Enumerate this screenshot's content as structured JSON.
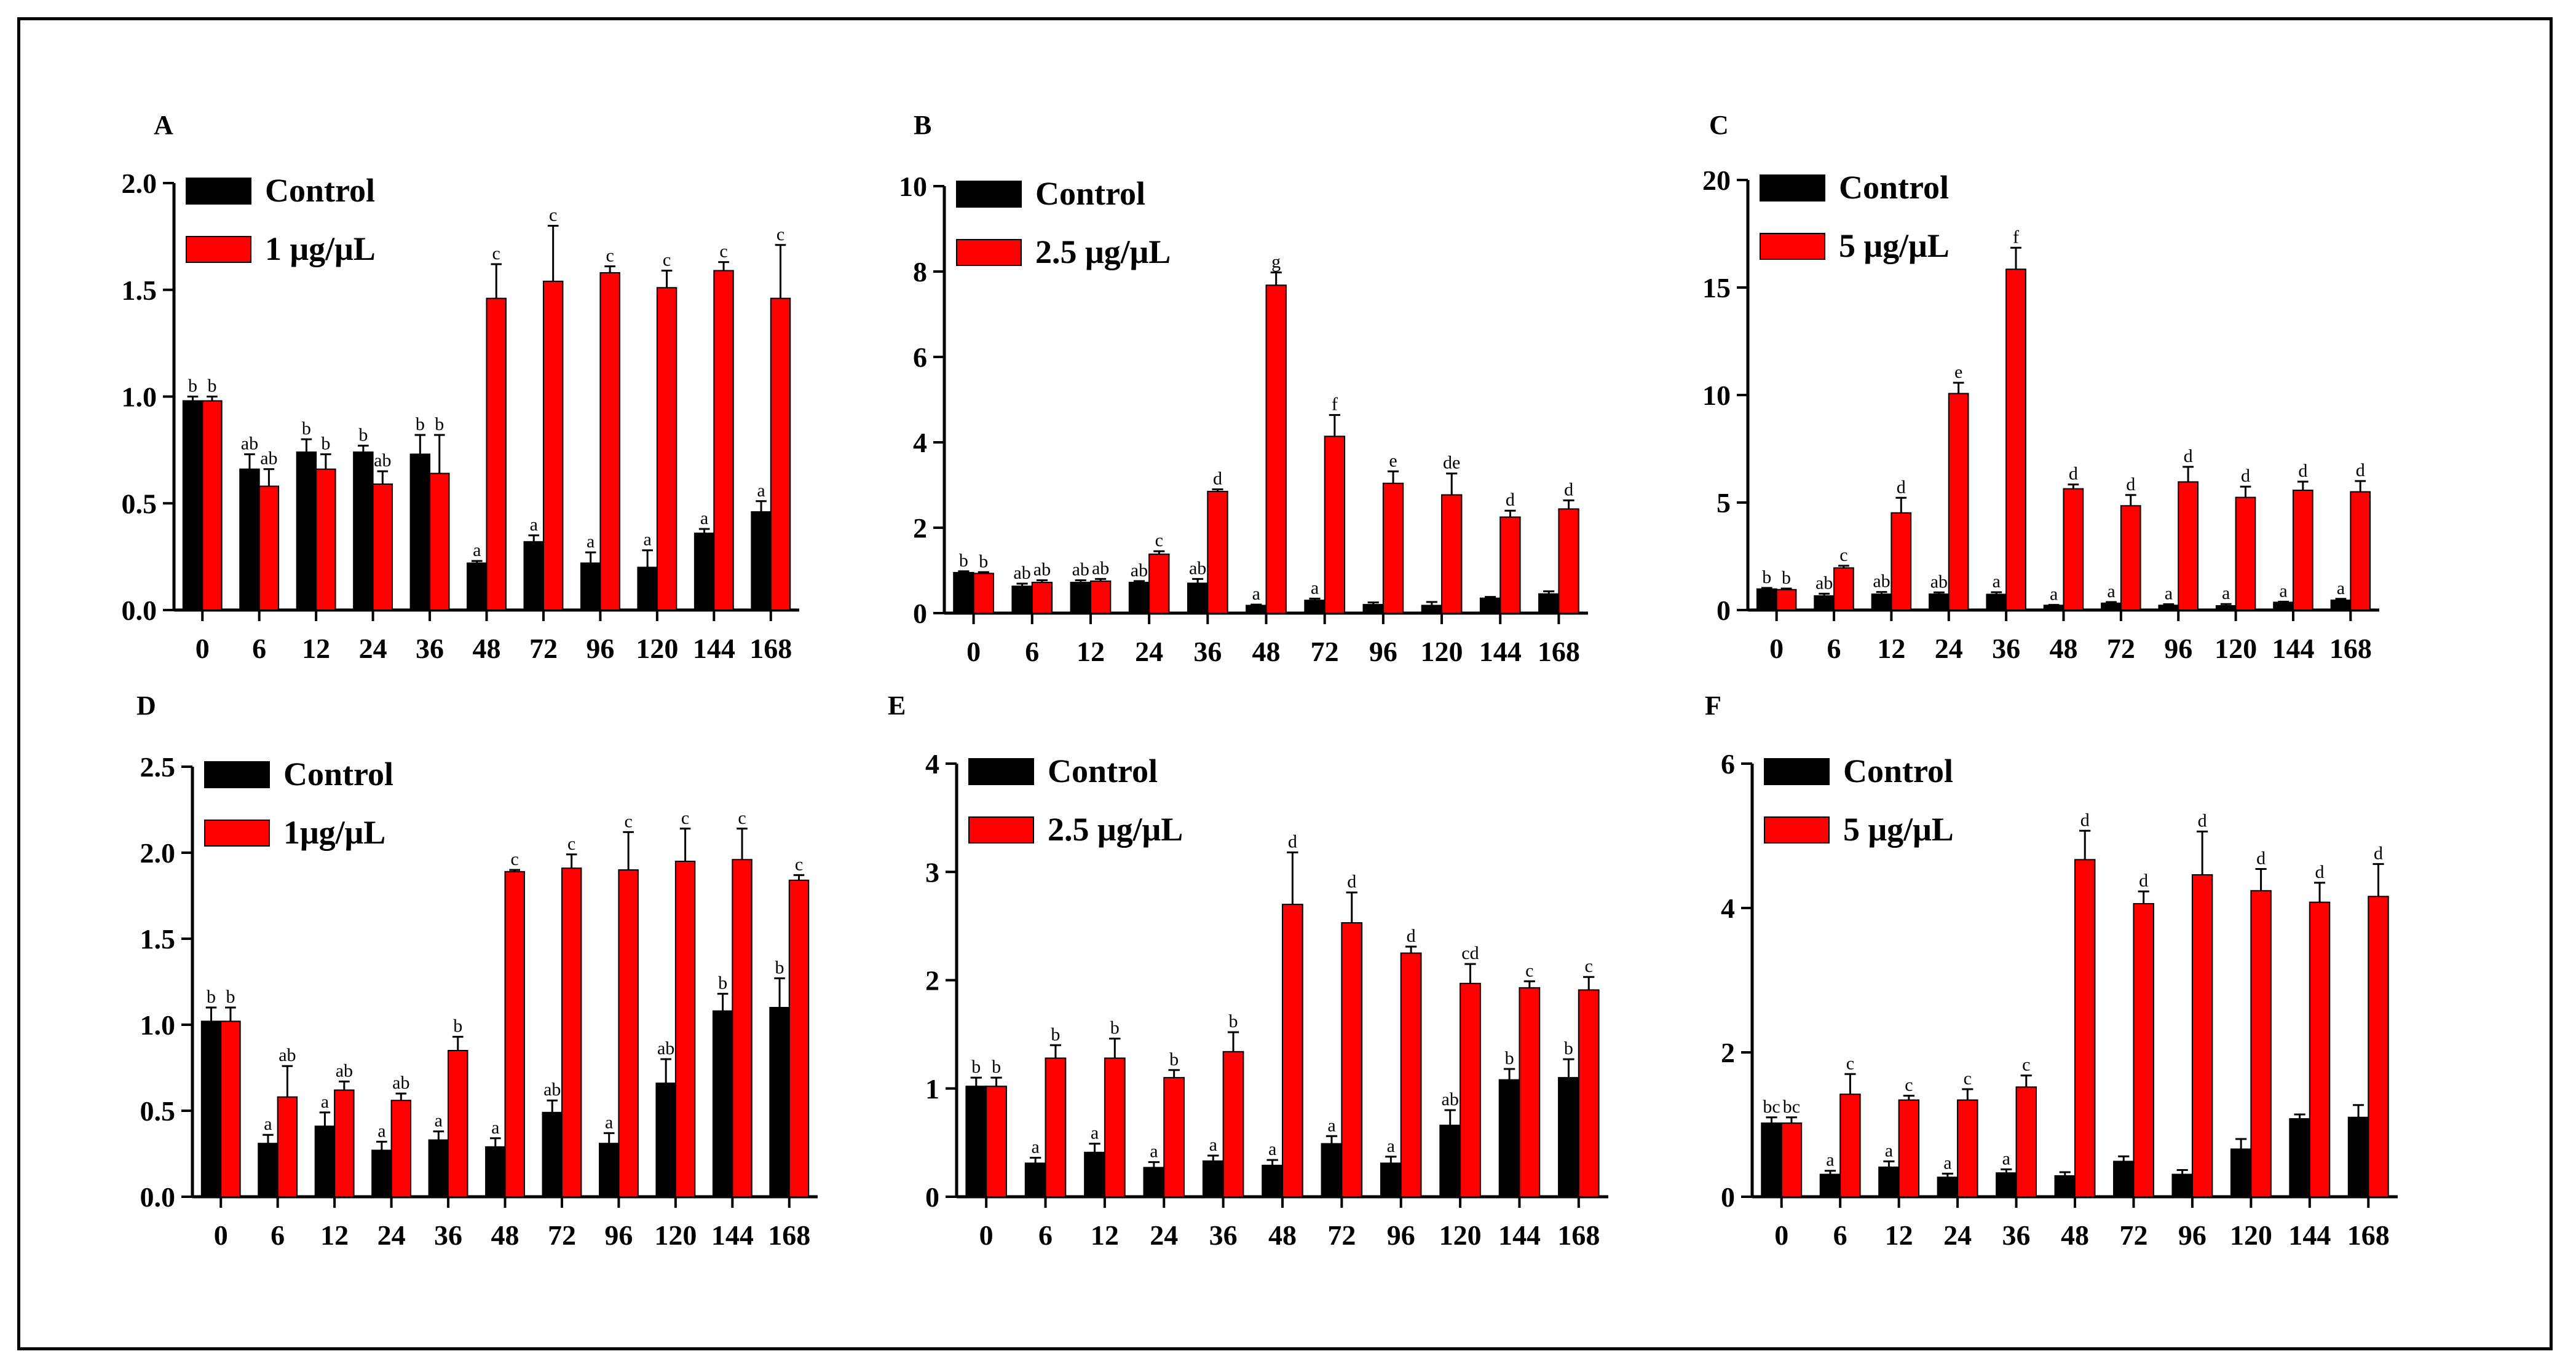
{
  "colors": {
    "control": "#000000",
    "treatment": "#ff0000",
    "frame": "#000000"
  },
  "chart_data": [
    {
      "type": "bar",
      "panel": "A",
      "categories": [
        "0",
        "6",
        "12",
        "24",
        "36",
        "48",
        "72",
        "96",
        "120",
        "144",
        "168"
      ],
      "ylim": [
        0,
        2.0
      ],
      "yticks": [
        "0.0",
        "0.5",
        "1.0",
        "1.5",
        "2.0"
      ],
      "ytick_values": [
        0,
        0.5,
        1.0,
        1.5,
        2.0
      ],
      "legend": [
        "Control",
        "1 μg/μL"
      ],
      "series": [
        {
          "name": "Control",
          "values": [
            0.98,
            0.66,
            0.74,
            0.74,
            0.73,
            0.22,
            0.32,
            0.22,
            0.2,
            0.36,
            0.46
          ],
          "errors": [
            0.02,
            0.07,
            0.06,
            0.03,
            0.09,
            0.01,
            0.03,
            0.05,
            0.08,
            0.02,
            0.05
          ],
          "letters": [
            "b",
            "ab",
            "b",
            "b",
            "b",
            "a",
            "a",
            "a",
            "a",
            "a",
            "a"
          ]
        },
        {
          "name": "1 μg/μL",
          "values": [
            0.98,
            0.58,
            0.66,
            0.59,
            0.64,
            1.46,
            1.54,
            1.58,
            1.51,
            1.59,
            1.46
          ],
          "errors": [
            0.02,
            0.08,
            0.07,
            0.06,
            0.18,
            0.16,
            0.26,
            0.03,
            0.08,
            0.04,
            0.25
          ],
          "letters": [
            "b",
            "ab",
            "b",
            "ab",
            "b",
            "c",
            "c",
            "c",
            "c",
            "c",
            "c"
          ]
        }
      ]
    },
    {
      "type": "bar",
      "panel": "B",
      "categories": [
        "0",
        "6",
        "12",
        "24",
        "36",
        "48",
        "72",
        "96",
        "120",
        "144",
        "168"
      ],
      "ylim": [
        0,
        10
      ],
      "yticks": [
        "0",
        "2",
        "4",
        "6",
        "8",
        "10"
      ],
      "ytick_values": [
        0,
        2,
        4,
        6,
        8,
        10
      ],
      "legend": [
        "Control",
        "2.5 μg/μL"
      ],
      "series": [
        {
          "name": "Control",
          "values": [
            0.95,
            0.63,
            0.72,
            0.72,
            0.7,
            0.18,
            0.3,
            0.2,
            0.18,
            0.35,
            0.45
          ],
          "errors": [
            0.03,
            0.06,
            0.05,
            0.03,
            0.1,
            0.02,
            0.04,
            0.05,
            0.08,
            0.03,
            0.06
          ],
          "letters": [
            "b",
            "ab",
            "ab",
            "ab",
            "ab",
            "a",
            "a",
            "",
            "",
            "",
            ""
          ]
        },
        {
          "name": "2.5 μg/μL",
          "values": [
            0.93,
            0.72,
            0.75,
            1.38,
            2.85,
            7.68,
            4.14,
            3.04,
            2.77,
            2.25,
            2.44
          ],
          "errors": [
            0.03,
            0.05,
            0.05,
            0.07,
            0.05,
            0.3,
            0.5,
            0.28,
            0.5,
            0.15,
            0.2
          ],
          "letters": [
            "b",
            "ab",
            "ab",
            "c",
            "d",
            "g",
            "f",
            "e",
            "de",
            "d",
            "d"
          ]
        }
      ]
    },
    {
      "type": "bar",
      "panel": "C",
      "categories": [
        "0",
        "6",
        "12",
        "24",
        "36",
        "48",
        "72",
        "96",
        "120",
        "144",
        "168"
      ],
      "ylim": [
        0,
        20
      ],
      "yticks": [
        "0",
        "5",
        "10",
        "15",
        "20"
      ],
      "ytick_values": [
        0,
        5,
        10,
        15,
        20
      ],
      "legend": [
        "Control",
        "5 μg/μL"
      ],
      "series": [
        {
          "name": "Control",
          "values": [
            0.98,
            0.66,
            0.74,
            0.74,
            0.73,
            0.22,
            0.32,
            0.22,
            0.2,
            0.36,
            0.46
          ],
          "errors": [
            0.05,
            0.1,
            0.1,
            0.08,
            0.1,
            0.02,
            0.05,
            0.05,
            0.08,
            0.03,
            0.06
          ],
          "letters": [
            "b",
            "ab",
            "ab",
            "ab",
            "a",
            "a",
            "a",
            "a",
            "a",
            "a",
            "a"
          ]
        },
        {
          "name": "5 μg/μL",
          "values": [
            0.95,
            1.96,
            4.52,
            10.07,
            15.85,
            5.64,
            4.85,
            5.96,
            5.24,
            5.57,
            5.5
          ],
          "errors": [
            0.05,
            0.1,
            0.7,
            0.5,
            1.0,
            0.2,
            0.5,
            0.7,
            0.5,
            0.4,
            0.5
          ],
          "letters": [
            "b",
            "c",
            "d",
            "e",
            "f",
            "d",
            "d",
            "d",
            "d",
            "d",
            "d"
          ]
        }
      ]
    },
    {
      "type": "bar",
      "panel": "D",
      "categories": [
        "0",
        "6",
        "12",
        "24",
        "36",
        "48",
        "72",
        "96",
        "120",
        "144",
        "168"
      ],
      "ylim": [
        0,
        2.5
      ],
      "yticks": [
        "0.0",
        "0.5",
        "1.0",
        "1.5",
        "2.0",
        "2.5"
      ],
      "ytick_values": [
        0,
        0.5,
        1.0,
        1.5,
        2.0,
        2.5
      ],
      "legend": [
        "Control",
        "1μg/μL"
      ],
      "series": [
        {
          "name": "Control",
          "values": [
            1.02,
            0.31,
            0.41,
            0.27,
            0.33,
            0.29,
            0.49,
            0.31,
            0.66,
            1.08,
            1.1
          ],
          "errors": [
            0.08,
            0.05,
            0.08,
            0.05,
            0.05,
            0.05,
            0.07,
            0.06,
            0.14,
            0.1,
            0.17
          ],
          "letters": [
            "b",
            "a",
            "a",
            "a",
            "a",
            "a",
            "ab",
            "a",
            "ab",
            "b",
            "b"
          ]
        },
        {
          "name": "1μg/μL",
          "values": [
            1.02,
            0.58,
            0.62,
            0.56,
            0.85,
            1.89,
            1.91,
            1.9,
            1.95,
            1.96,
            1.84
          ],
          "errors": [
            0.08,
            0.18,
            0.05,
            0.04,
            0.08,
            0.01,
            0.08,
            0.22,
            0.19,
            0.18,
            0.03
          ],
          "letters": [
            "b",
            "ab",
            "ab",
            "ab",
            "b",
            "c",
            "c",
            "c",
            "c",
            "c",
            "c"
          ]
        }
      ]
    },
    {
      "type": "bar",
      "panel": "E",
      "categories": [
        "0",
        "6",
        "12",
        "24",
        "36",
        "48",
        "72",
        "96",
        "120",
        "144",
        "168"
      ],
      "ylim": [
        0,
        4
      ],
      "yticks": [
        "0",
        "1",
        "2",
        "3",
        "4"
      ],
      "ytick_values": [
        0,
        1,
        2,
        3,
        4
      ],
      "legend": [
        "Control",
        "2.5 μg/μL"
      ],
      "series": [
        {
          "name": "Control",
          "values": [
            1.02,
            0.31,
            0.41,
            0.27,
            0.33,
            0.29,
            0.49,
            0.31,
            0.66,
            1.08,
            1.1
          ],
          "errors": [
            0.08,
            0.05,
            0.08,
            0.05,
            0.05,
            0.05,
            0.07,
            0.06,
            0.14,
            0.1,
            0.17
          ],
          "letters": [
            "b",
            "a",
            "a",
            "a",
            "a",
            "a",
            "a",
            "a",
            "ab",
            "b",
            "b"
          ]
        },
        {
          "name": "2.5 μg/μL",
          "values": [
            1.02,
            1.28,
            1.28,
            1.1,
            1.34,
            2.7,
            2.53,
            2.25,
            1.97,
            1.93,
            1.91
          ],
          "errors": [
            0.08,
            0.12,
            0.18,
            0.07,
            0.18,
            0.48,
            0.28,
            0.06,
            0.18,
            0.06,
            0.12
          ],
          "letters": [
            "b",
            "b",
            "b",
            "b",
            "b",
            "d",
            "d",
            "d",
            "cd",
            "c",
            "c"
          ]
        }
      ]
    },
    {
      "type": "bar",
      "panel": "F",
      "categories": [
        "0",
        "6",
        "12",
        "24",
        "36",
        "48",
        "72",
        "96",
        "120",
        "144",
        "168"
      ],
      "ylim": [
        0,
        6
      ],
      "yticks": [
        "0",
        "2",
        "4",
        "6"
      ],
      "ytick_values": [
        0,
        2,
        4,
        6
      ],
      "legend": [
        "Control",
        "5 μg/μL"
      ],
      "series": [
        {
          "name": "Control",
          "values": [
            1.02,
            0.31,
            0.41,
            0.27,
            0.33,
            0.29,
            0.49,
            0.31,
            0.66,
            1.08,
            1.1
          ],
          "errors": [
            0.08,
            0.05,
            0.08,
            0.05,
            0.05,
            0.05,
            0.07,
            0.06,
            0.14,
            0.06,
            0.17
          ],
          "letters": [
            "bc",
            "a",
            "a",
            "a",
            "a",
            "",
            "",
            "",
            "",
            "",
            ""
          ]
        },
        {
          "name": "5 μg/μL",
          "values": [
            1.02,
            1.42,
            1.34,
            1.34,
            1.52,
            4.67,
            4.06,
            4.46,
            4.24,
            4.08,
            4.16
          ],
          "errors": [
            0.08,
            0.28,
            0.06,
            0.15,
            0.16,
            0.4,
            0.17,
            0.6,
            0.3,
            0.27,
            0.45
          ],
          "letters": [
            "bc",
            "c",
            "c",
            "c",
            "c",
            "d",
            "d",
            "d",
            "d",
            "d",
            "d"
          ]
        }
      ]
    }
  ]
}
